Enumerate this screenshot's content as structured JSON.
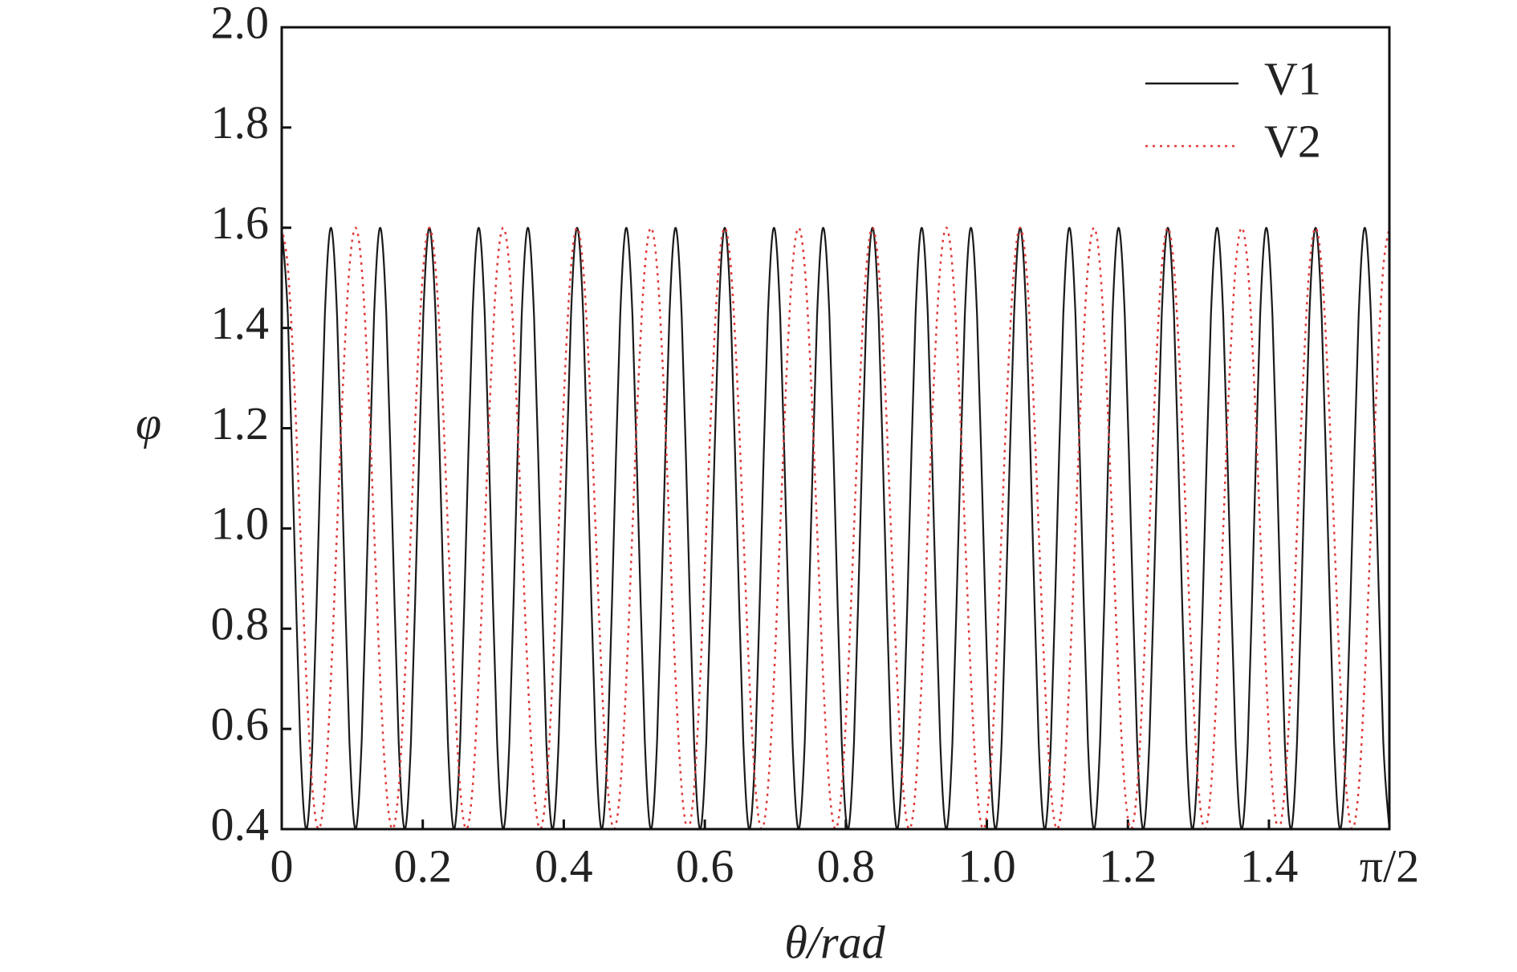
{
  "chart_data": {
    "type": "line",
    "x": [
      0,
      0.0087,
      0.0175,
      0.0262,
      0.0349,
      0.0436,
      0.0524,
      0.0611,
      0.0698,
      0.0785,
      0.0873,
      0.096,
      0.1047,
      0.1134,
      0.1222,
      0.1309,
      0.1396,
      0.1484,
      0.1571,
      0.1658,
      0.1745,
      0.1833,
      0.192,
      0.2007,
      0.2094,
      0.2182,
      0.2269,
      0.2356,
      0.2443,
      0.2531,
      0.2618,
      0.2705,
      0.2793,
      0.288,
      0.2967,
      0.3054,
      0.3142,
      0.3229,
      0.3316,
      0.3403,
      0.3491,
      0.3578,
      0.3665,
      0.3752,
      0.384,
      0.3927,
      0.4014,
      0.4102,
      0.4189,
      0.4276,
      0.4363,
      0.4451,
      0.4538,
      0.4625,
      0.4712,
      0.48,
      0.4887,
      0.4974,
      0.5061,
      0.5149,
      0.5236,
      0.5323,
      0.5411,
      0.5498,
      0.5585,
      0.5672,
      0.576,
      0.5847,
      0.5934,
      0.6021,
      0.6109,
      0.6196,
      0.6283,
      0.637,
      0.6458,
      0.6545,
      0.6632,
      0.672,
      0.6807,
      0.6894,
      0.6981,
      0.7069,
      0.7156,
      0.7243,
      0.733,
      0.7418,
      0.7505,
      0.7592,
      0.7679,
      0.7767,
      0.7854,
      0.7941,
      0.8029,
      0.8116,
      0.8203,
      0.829,
      0.8378,
      0.8465,
      0.8552,
      0.8639,
      0.8727,
      0.8814,
      0.8901,
      0.8988,
      0.9076,
      0.9163,
      0.925,
      0.9338,
      0.9425,
      0.9512,
      0.9599,
      0.9687,
      0.9774,
      0.9861,
      0.9948,
      1.0036,
      1.0123,
      1.021,
      1.0297,
      1.0385,
      1.0472,
      1.0559,
      1.0647,
      1.0734,
      1.0821,
      1.0908,
      1.0996,
      1.1083,
      1.117,
      1.1257,
      1.1345,
      1.1432,
      1.1519,
      1.1606,
      1.1694,
      1.1781,
      1.1868,
      1.1956,
      1.2043,
      1.213,
      1.2217,
      1.2305,
      1.2392,
      1.2479,
      1.2566,
      1.2654,
      1.2741,
      1.2828,
      1.2915,
      1.3003,
      1.309,
      1.3177,
      1.3265,
      1.3352,
      1.3439,
      1.3526,
      1.3614,
      1.3701,
      1.3788,
      1.3875,
      1.3963,
      1.405,
      1.4137,
      1.4224,
      1.4312,
      1.4399,
      1.4486,
      1.4573,
      1.4661,
      1.4748,
      1.4835,
      1.4923,
      1.501,
      1.5097,
      1.5184,
      1.5272,
      1.5359,
      1.5446,
      1.5533,
      1.5621,
      1.5708
    ],
    "series": [
      {
        "name": "V1",
        "color": "#1a1a1a",
        "style": "solid",
        "values": [
          1.6,
          1.424,
          1.0,
          0.576,
          0.4,
          0.576,
          1.0,
          1.424,
          1.6,
          1.424,
          1.0,
          0.576,
          0.4,
          0.576,
          1.0,
          1.424,
          1.6,
          1.424,
          1.0,
          0.576,
          0.4,
          0.576,
          1.0,
          1.424,
          1.6,
          1.424,
          1.0,
          0.576,
          0.4,
          0.576,
          1.0,
          1.424,
          1.6,
          1.424,
          1.0,
          0.576,
          0.4,
          0.576,
          1.0,
          1.424,
          1.6,
          1.424,
          1.0,
          0.576,
          0.4,
          0.576,
          1.0,
          1.424,
          1.6,
          1.424,
          1.0,
          0.576,
          0.4,
          0.576,
          1.0,
          1.424,
          1.6,
          1.424,
          1.0,
          0.576,
          0.4,
          0.576,
          1.0,
          1.424,
          1.6,
          1.424,
          1.0,
          0.576,
          0.4,
          0.576,
          1.0,
          1.424,
          1.6,
          1.424,
          1.0,
          0.576,
          0.4,
          0.576,
          1.0,
          1.424,
          1.6,
          1.424,
          1.0,
          0.576,
          0.4,
          0.576,
          1.0,
          1.424,
          1.6,
          1.424,
          1.0,
          0.576,
          0.4,
          0.576,
          1.0,
          1.424,
          1.6,
          1.424,
          1.0,
          0.576,
          0.4,
          0.576,
          1.0,
          1.424,
          1.6,
          1.424,
          1.0,
          0.576,
          0.4,
          0.576,
          1.0,
          1.424,
          1.6,
          1.424,
          1.0,
          0.576,
          0.4,
          0.576,
          1.0,
          1.424,
          1.6,
          1.424,
          1.0,
          0.576,
          0.4,
          0.576,
          1.0,
          1.424,
          1.6,
          1.424,
          1.0,
          0.576,
          0.4,
          0.576,
          1.0,
          1.424,
          1.6,
          1.424,
          1.0,
          0.576,
          0.4,
          0.576,
          1.0,
          1.424,
          1.6,
          1.424,
          1.0,
          0.576,
          0.4,
          0.576,
          1.0,
          1.424,
          1.6,
          1.424,
          1.0,
          0.576,
          0.4,
          0.576,
          1.0,
          1.424,
          1.6,
          1.424,
          1.0,
          0.576,
          0.4,
          0.576,
          1.0,
          1.424,
          1.6,
          1.424,
          1.0,
          0.576,
          0.4,
          0.576,
          1.0,
          1.424,
          1.6,
          1.424,
          1.0,
          0.576,
          0.4
        ]
      },
      {
        "name": "V2",
        "color": "#e03a3a",
        "style": "dotted",
        "values": [
          1.6,
          1.52,
          1.3,
          1.0,
          0.7,
          0.48,
          0.4,
          0.48,
          0.7,
          1.0,
          1.3,
          1.52,
          1.6,
          1.52,
          1.3,
          1.0,
          0.7,
          0.48,
          0.4,
          0.48,
          0.7,
          1.0,
          1.3,
          1.52,
          1.6,
          1.52,
          1.3,
          1.0,
          0.7,
          0.48,
          0.4,
          0.48,
          0.7,
          1.0,
          1.3,
          1.52,
          1.6,
          1.52,
          1.3,
          1.0,
          0.7,
          0.48,
          0.4,
          0.48,
          0.7,
          1.0,
          1.3,
          1.52,
          1.6,
          1.52,
          1.3,
          1.0,
          0.7,
          0.48,
          0.4,
          0.48,
          0.7,
          1.0,
          1.3,
          1.52,
          1.6,
          1.52,
          1.3,
          1.0,
          0.7,
          0.48,
          0.4,
          0.48,
          0.7,
          1.0,
          1.3,
          1.52,
          1.6,
          1.52,
          1.3,
          1.0,
          0.7,
          0.48,
          0.4,
          0.48,
          0.7,
          1.0,
          1.3,
          1.52,
          1.6,
          1.52,
          1.3,
          1.0,
          0.7,
          0.48,
          0.4,
          0.48,
          0.7,
          1.0,
          1.3,
          1.52,
          1.6,
          1.52,
          1.3,
          1.0,
          0.7,
          0.48,
          0.4,
          0.48,
          0.7,
          1.0,
          1.3,
          1.52,
          1.6,
          1.52,
          1.3,
          1.0,
          0.7,
          0.48,
          0.4,
          0.48,
          0.7,
          1.0,
          1.3,
          1.52,
          1.6,
          1.52,
          1.3,
          1.0,
          0.7,
          0.48,
          0.4,
          0.48,
          0.7,
          1.0,
          1.3,
          1.52,
          1.6,
          1.52,
          1.3,
          1.0,
          0.7,
          0.48,
          0.4,
          0.48,
          0.7,
          1.0,
          1.3,
          1.52,
          1.6,
          1.52,
          1.3,
          1.0,
          0.7,
          0.48,
          0.4,
          0.48,
          0.7,
          1.0,
          1.3,
          1.52,
          1.6,
          1.52,
          1.3,
          1.0,
          0.7,
          0.48,
          0.4,
          0.48,
          0.7,
          1.0,
          1.3,
          1.52,
          1.6,
          1.52,
          1.3,
          1.0,
          0.7,
          0.48,
          0.4,
          0.48,
          0.7,
          1.0,
          1.3,
          1.52,
          1.6
        ]
      }
    ],
    "xlabel": "θ/rad",
    "ylabel": "φ",
    "xlim": [
      0,
      1.5708
    ],
    "xticks": [
      0,
      0.2,
      0.4,
      0.6,
      0.8,
      {
        "value": 1.0,
        "label": "1.0"
      },
      1.2,
      1.4,
      {
        "value": 1.5708,
        "label": "π/2"
      }
    ],
    "ylim": [
      0.4,
      2.0
    ],
    "yticks": [
      0.4,
      0.6,
      0.8,
      {
        "value": 1.0,
        "label": "1.0"
      },
      1.2,
      1.4,
      1.6,
      1.8,
      {
        "value": 2.0,
        "label": "2.0"
      }
    ],
    "grid": false,
    "legend": "upper right"
  }
}
